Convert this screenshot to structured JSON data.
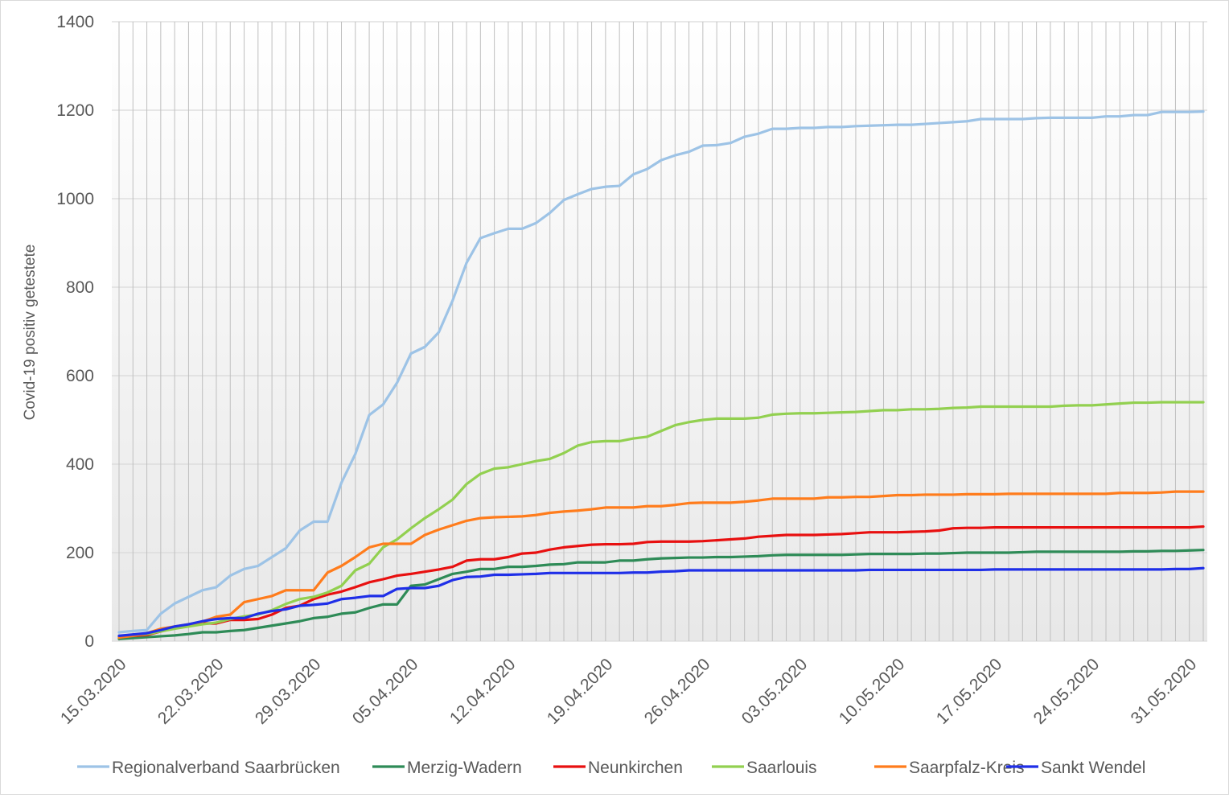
{
  "chart_data": {
    "type": "line",
    "title": "",
    "xlabel": "",
    "ylabel": "Covid-19 positiv getestete",
    "ylim": [
      0,
      1400
    ],
    "yticks": [
      "0",
      "200",
      "400",
      "600",
      "800",
      "1000",
      "1200",
      "1400"
    ],
    "x_tick_labels": [
      "15.03.2020",
      "22.03.2020",
      "29.03.2020",
      "05.04.2020",
      "12.04.2020",
      "19.04.2020",
      "26.04.2020",
      "03.05.2020",
      "10.05.2020",
      "17.05.2020",
      "24.05.2020",
      "31.05.2020"
    ],
    "x_start": "15.03.2020",
    "x_end": "01.06.2020",
    "grid": true,
    "legend_position": "bottom",
    "series": [
      {
        "name": "Regionalverband Saarbrücken",
        "color": "#9dc3e6",
        "values": [
          20,
          23,
          25,
          62,
          85,
          100,
          115,
          122,
          148,
          163,
          170,
          190,
          210,
          250,
          270,
          270,
          358,
          423,
          511,
          535,
          584,
          650,
          665,
          698,
          770,
          855,
          911,
          922,
          932,
          932,
          945,
          968,
          997,
          1010,
          1022,
          1027,
          1029,
          1055,
          1067,
          1087,
          1098,
          1106,
          1120,
          1121,
          1126,
          1140,
          1147,
          1158,
          1158,
          1160,
          1160,
          1162,
          1162,
          1164,
          1165,
          1166,
          1167,
          1167,
          1169,
          1171,
          1173,
          1175,
          1180,
          1180,
          1180,
          1180,
          1182,
          1183,
          1183,
          1183,
          1183,
          1186,
          1186,
          1189,
          1189,
          1196,
          1196,
          1196,
          1197
        ]
      },
      {
        "name": "Merzig-Wadern",
        "color": "#2e8b57",
        "values": [
          5,
          7,
          9,
          11,
          13,
          16,
          20,
          20,
          23,
          25,
          30,
          35,
          40,
          45,
          52,
          55,
          62,
          65,
          75,
          83,
          83,
          125,
          128,
          140,
          152,
          157,
          163,
          163,
          168,
          168,
          170,
          173,
          174,
          178,
          178,
          178,
          182,
          182,
          185,
          187,
          188,
          189,
          189,
          190,
          190,
          191,
          192,
          194,
          195,
          195,
          195,
          195,
          195,
          196,
          197,
          197,
          197,
          197,
          198,
          198,
          199,
          200,
          200,
          200,
          200,
          201,
          202,
          202,
          202,
          202,
          202,
          202,
          202,
          203,
          203,
          204,
          204,
          205,
          206
        ]
      },
      {
        "name": "Neunkirchen",
        "color": "#e81010",
        "values": [
          10,
          12,
          14,
          22,
          30,
          37,
          40,
          40,
          48,
          48,
          50,
          60,
          75,
          80,
          95,
          105,
          112,
          122,
          133,
          140,
          148,
          152,
          157,
          162,
          168,
          182,
          185,
          185,
          190,
          198,
          200,
          207,
          212,
          215,
          218,
          219,
          219,
          220,
          224,
          225,
          225,
          225,
          226,
          228,
          230,
          232,
          236,
          238,
          240,
          240,
          240,
          241,
          242,
          244,
          246,
          246,
          246,
          247,
          248,
          250,
          255,
          256,
          256,
          257,
          257,
          257,
          257,
          257,
          257,
          257,
          257,
          257,
          257,
          257,
          257,
          257,
          257,
          257,
          259
        ]
      },
      {
        "name": "Saarlouis",
        "color": "#92d050",
        "values": [
          10,
          13,
          16,
          22,
          28,
          33,
          38,
          42,
          50,
          56,
          60,
          70,
          84,
          95,
          100,
          110,
          125,
          160,
          175,
          212,
          230,
          255,
          278,
          298,
          320,
          355,
          378,
          390,
          393,
          400,
          407,
          412,
          425,
          442,
          450,
          452,
          452,
          458,
          462,
          475,
          488,
          495,
          500,
          503,
          503,
          503,
          505,
          512,
          514,
          515,
          515,
          516,
          517,
          518,
          520,
          522,
          522,
          524,
          524,
          525,
          527,
          528,
          530,
          530,
          530,
          530,
          530,
          530,
          532,
          533,
          533,
          535,
          537,
          539,
          539,
          540,
          540,
          540,
          540
        ]
      },
      {
        "name": "Saarpfalz-Kreis",
        "color": "#ff7c1c",
        "values": [
          8,
          12,
          18,
          28,
          33,
          38,
          44,
          55,
          60,
          88,
          95,
          102,
          115,
          115,
          115,
          155,
          170,
          190,
          212,
          220,
          220,
          220,
          240,
          252,
          262,
          272,
          278,
          280,
          281,
          282,
          285,
          290,
          293,
          295,
          298,
          302,
          302,
          302,
          305,
          305,
          308,
          312,
          313,
          313,
          313,
          315,
          318,
          322,
          322,
          322,
          322,
          325,
          325,
          326,
          326,
          328,
          330,
          330,
          331,
          331,
          331,
          332,
          332,
          332,
          333,
          333,
          333,
          333,
          333,
          333,
          333,
          333,
          335,
          335,
          335,
          336,
          338,
          338,
          338
        ]
      },
      {
        "name": "Sankt Wendel",
        "color": "#1f2fe8",
        "values": [
          12,
          15,
          18,
          25,
          33,
          38,
          45,
          50,
          52,
          52,
          62,
          68,
          72,
          80,
          82,
          85,
          95,
          98,
          102,
          102,
          118,
          120,
          120,
          125,
          138,
          145,
          146,
          150,
          150,
          151,
          152,
          154,
          154,
          154,
          154,
          154,
          154,
          155,
          155,
          157,
          158,
          160,
          160,
          160,
          160,
          160,
          160,
          160,
          160,
          160,
          160,
          160,
          160,
          160,
          161,
          161,
          161,
          161,
          161,
          161,
          161,
          161,
          161,
          162,
          162,
          162,
          162,
          162,
          162,
          162,
          162,
          162,
          162,
          162,
          162,
          162,
          163,
          163,
          165
        ]
      }
    ]
  }
}
